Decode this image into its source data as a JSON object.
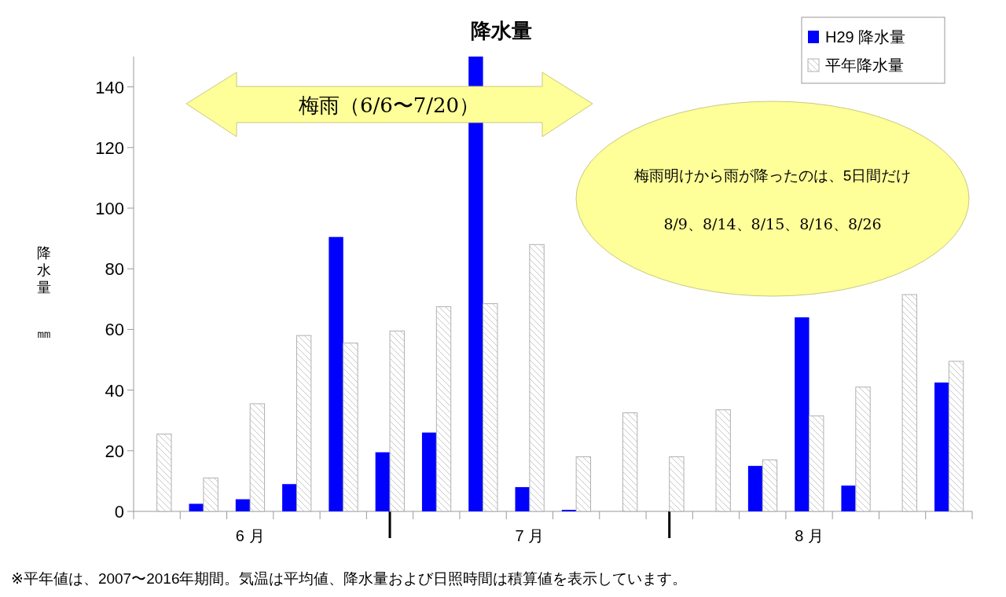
{
  "chart_data": {
    "type": "bar",
    "title": "降水量",
    "ylabel": "降水量㎜",
    "categories": [
      null,
      null,
      "6 月",
      null,
      null,
      null,
      null,
      null,
      "7 月",
      null,
      null,
      null,
      null,
      null,
      "8 月",
      null,
      null,
      null
    ],
    "series": [
      {
        "name": "H29 降水量",
        "color": "#0000ff",
        "values": [
          null,
          2.5,
          4,
          9,
          90.5,
          19.5,
          26,
          150,
          8,
          0.5,
          null,
          null,
          null,
          15,
          64,
          8.5,
          null,
          42.5
        ]
      },
      {
        "name": "平年降水量",
        "color": "#b0b0b0",
        "values": [
          25.5,
          11,
          35.5,
          58,
          55.5,
          59.5,
          67.5,
          68.5,
          88,
          18,
          32.5,
          18,
          33.5,
          17,
          31.5,
          41,
          71.5,
          49.5
        ]
      }
    ],
    "ylim": [
      0,
      150
    ],
    "yticks": [
      0,
      20,
      40,
      60,
      80,
      100,
      120,
      140
    ],
    "grid": false,
    "legend": "top right",
    "annotations": [
      "梅雨（6/6〜7/20）",
      "梅雨明けから雨が降ったのは、5日間だけ",
      "8/9、8/14、8/15、8/16、8/26",
      "※平年値は、2007〜2016年期間。気温は平均値、降水量および日照時間は積算値を表示しています。"
    ]
  }
}
